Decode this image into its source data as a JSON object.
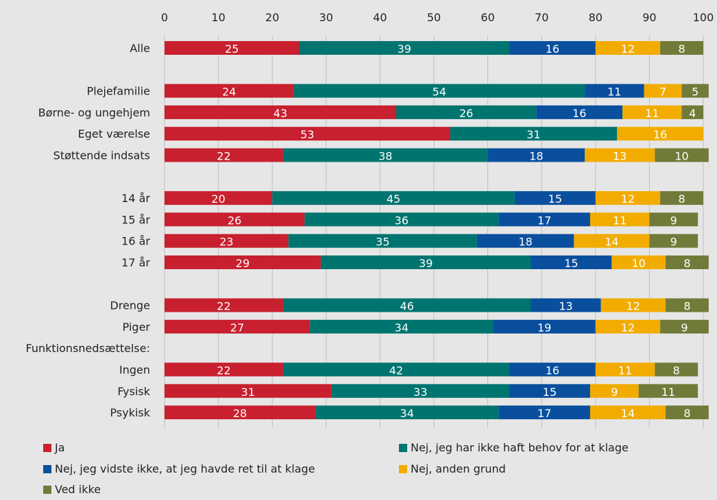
{
  "chart_data": {
    "type": "bar",
    "orientation": "horizontal",
    "stacked": true,
    "xlim": [
      0,
      100
    ],
    "x_ticks": [
      0,
      10,
      20,
      30,
      40,
      50,
      60,
      70,
      80,
      90,
      100
    ],
    "x_tick_labels": [
      "0",
      "10",
      "20",
      "30",
      "40",
      "50",
      "60",
      "70",
      "80",
      "90",
      "100"
    ],
    "grid": true,
    "legend_position": "bottom",
    "colors": [
      "#c8202f",
      "#00746f",
      "#0a4f9e",
      "#f2ac00",
      "#717a39"
    ],
    "series_names": [
      "Ja",
      "Nej, jeg har ikke haft behov for at klage",
      "Nej, jeg vidste ikke, at jeg havde ret til at klage",
      "Nej, anden grund",
      "Ved ikke"
    ],
    "rows": [
      {
        "label": "Alle",
        "values": [
          25,
          39,
          16,
          12,
          8
        ],
        "shown": [
          25,
          39,
          16,
          12,
          8
        ]
      },
      {
        "label": "",
        "values": null,
        "shown": null
      },
      {
        "label": "Plejefamilie",
        "values": [
          24,
          54,
          11,
          7,
          5
        ],
        "shown": [
          24,
          54,
          11,
          7,
          5
        ]
      },
      {
        "label": "Børne- og ungehjem",
        "values": [
          43,
          26,
          16,
          11,
          4
        ],
        "shown": [
          43,
          26,
          16,
          11,
          4
        ]
      },
      {
        "label": "Eget værelse",
        "values": [
          53,
          31,
          0,
          16,
          0
        ],
        "shown": [
          53,
          31,
          null,
          16,
          null
        ]
      },
      {
        "label": "Støttende indsats",
        "values": [
          22,
          38,
          18,
          13,
          10
        ],
        "shown": [
          22,
          38,
          18,
          13,
          10
        ]
      },
      {
        "label": "",
        "values": null,
        "shown": null
      },
      {
        "label": "14 år",
        "values": [
          20,
          45,
          15,
          12,
          8
        ],
        "shown": [
          20,
          45,
          15,
          12,
          8
        ]
      },
      {
        "label": "15 år",
        "values": [
          26,
          36,
          17,
          11,
          9
        ],
        "shown": [
          26,
          36,
          17,
          11,
          9
        ]
      },
      {
        "label": "16 år",
        "values": [
          23,
          35,
          18,
          14,
          9
        ],
        "shown": [
          23,
          35,
          18,
          14,
          9
        ]
      },
      {
        "label": "17 år",
        "values": [
          29,
          39,
          15,
          10,
          8
        ],
        "shown": [
          29,
          39,
          15,
          10,
          8
        ]
      },
      {
        "label": "",
        "values": null,
        "shown": null
      },
      {
        "label": "Drenge",
        "values": [
          22,
          46,
          13,
          12,
          8
        ],
        "shown": [
          22,
          46,
          13,
          12,
          8
        ]
      },
      {
        "label": "Piger",
        "values": [
          27,
          34,
          19,
          12,
          9
        ],
        "shown": [
          27,
          34,
          19,
          12,
          9
        ]
      },
      {
        "label": "Funktionsnedsættelse:",
        "values": null,
        "shown": null
      },
      {
        "label": "Ingen",
        "values": [
          22,
          42,
          16,
          11,
          8
        ],
        "shown": [
          22,
          42,
          16,
          11,
          8
        ]
      },
      {
        "label": "Fysisk",
        "values": [
          31,
          33,
          15,
          9,
          11
        ],
        "shown": [
          31,
          33,
          15,
          9,
          11
        ]
      },
      {
        "label": "Psykisk",
        "values": [
          28,
          34,
          17,
          14,
          8
        ],
        "shown": [
          28,
          34,
          17,
          14,
          8
        ]
      }
    ]
  }
}
